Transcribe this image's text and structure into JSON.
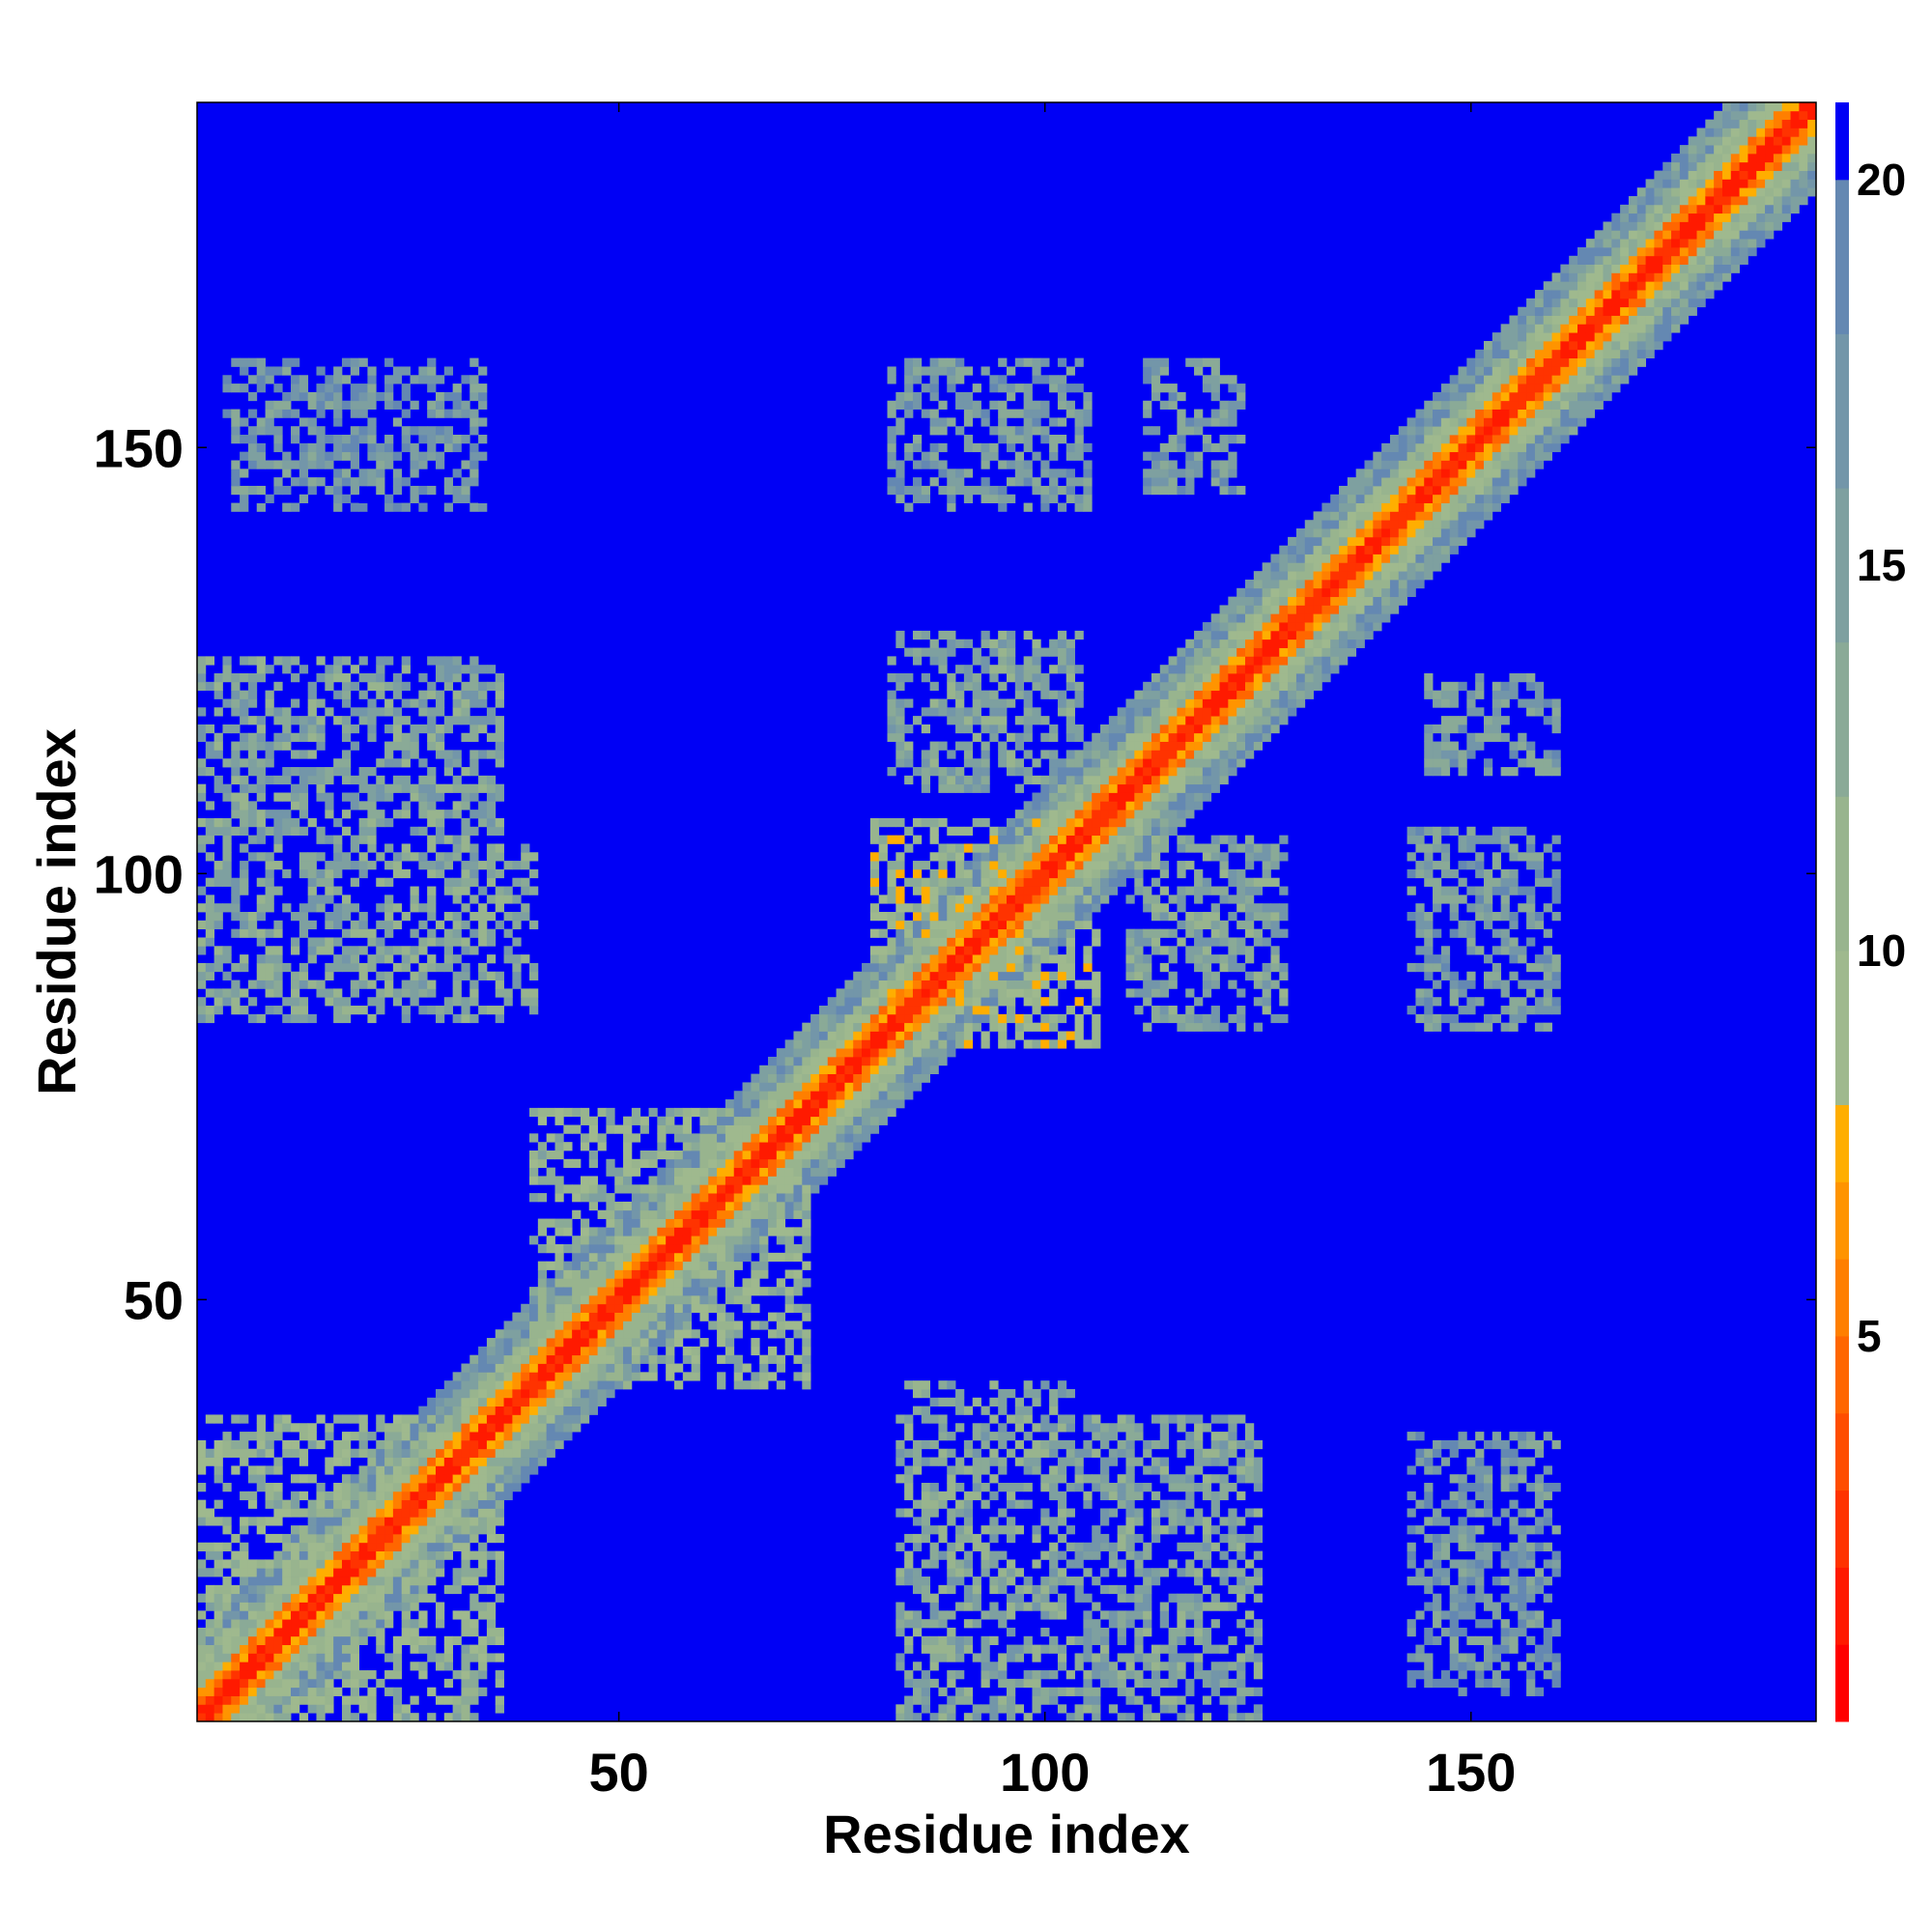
{
  "chart_data": {
    "type": "heatmap",
    "title": "",
    "xlabel": "Residue index",
    "ylabel": "Residue index",
    "xlim": [
      1,
      190
    ],
    "ylim": [
      1,
      190
    ],
    "x_ticks": [
      50,
      100,
      150
    ],
    "y_ticks": [
      50,
      100,
      150
    ],
    "colorbar": {
      "range": [
        0,
        21
      ],
      "ticks": [
        5,
        10,
        15,
        20
      ],
      "cutoff": 20,
      "levels": [
        {
          "max": 1,
          "color": "#ff0000"
        },
        {
          "max": 2,
          "color": "#ff1a00"
        },
        {
          "max": 3,
          "color": "#ff3300"
        },
        {
          "max": 4,
          "color": "#ff4d00"
        },
        {
          "max": 5,
          "color": "#ff6600"
        },
        {
          "max": 6,
          "color": "#ff7f00"
        },
        {
          "max": 7,
          "color": "#ff9400"
        },
        {
          "max": 8,
          "color": "#ffae00"
        },
        {
          "max": 10,
          "color": "#9fb98e"
        },
        {
          "max": 12,
          "color": "#98b48e"
        },
        {
          "max": 14,
          "color": "#8aaa97"
        },
        {
          "max": 16,
          "color": "#7ea0a0"
        },
        {
          "max": 18,
          "color": "#7396a9"
        },
        {
          "max": 20,
          "color": "#6488b2"
        },
        {
          "max": 21,
          "color": "#0000f5"
        }
      ]
    },
    "description_of_values": "Residue-residue distance map (symmetric). Diagonal near 0; band widens off-diagonal; off-diagonal contact patches listed in blocks.",
    "blocks": [
      {
        "x": [
          1,
          36
        ],
        "y": [
          1,
          36
        ],
        "mean": 11
      },
      {
        "x": [
          4,
          40
        ],
        "y": [
          84,
          103
        ],
        "mean": 13
      },
      {
        "x": [
          4,
          34
        ],
        "y": [
          143,
          158
        ],
        "mean": 17
      },
      {
        "x": [
          40,
          72
        ],
        "y": [
          40,
          72
        ],
        "mean": 11
      },
      {
        "x": [
          80,
          106
        ],
        "y": [
          80,
          106
        ],
        "mean": 10
      },
      {
        "x": [
          83,
          125
        ],
        "y": [
          1,
          36
        ],
        "mean": 14
      },
      {
        "x": [
          110,
          128
        ],
        "y": [
          82,
          104
        ],
        "mean": 14
      },
      {
        "x": [
          145,
          160
        ],
        "y": [
          82,
          104
        ],
        "mean": 15
      },
      {
        "x": [
          145,
          160
        ],
        "y": [
          5,
          34
        ],
        "mean": 16
      },
      {
        "x": [
          83,
          105
        ],
        "y": [
          143,
          158
        ],
        "mean": 15
      },
      {
        "x": [
          114,
          123
        ],
        "y": [
          145,
          158
        ],
        "mean": 15
      },
      {
        "x": [
          83,
          103
        ],
        "y": [
          112,
          126
        ],
        "mean": 14
      },
      {
        "x": [
          145,
          160
        ],
        "y": [
          112,
          120
        ],
        "mean": 15
      }
    ]
  }
}
